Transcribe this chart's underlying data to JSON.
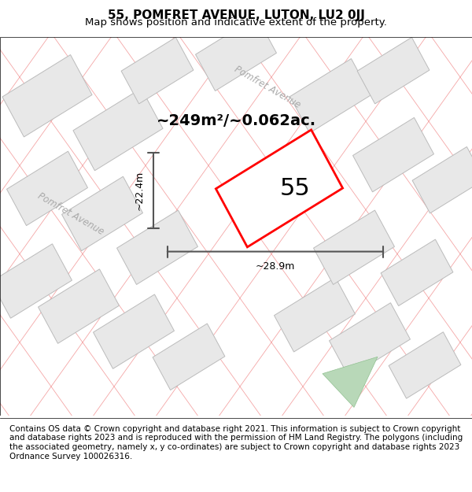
{
  "title_line1": "55, POMFRET AVENUE, LUTON, LU2 0JJ",
  "title_line2": "Map shows position and indicative extent of the property.",
  "footer_text": "Contains OS data © Crown copyright and database right 2021. This information is subject to Crown copyright and database rights 2023 and is reproduced with the permission of HM Land Registry. The polygons (including the associated geometry, namely x, y co-ordinates) are subject to Crown copyright and database rights 2023 Ordnance Survey 100026316.",
  "area_text": "~249m²/~0.062ac.",
  "property_number": "55",
  "dim_height": "~22.4m",
  "dim_width": "~28.9m",
  "street_label_1": "Pomfret Avenue",
  "street_label_2": "Pomfret Avenue",
  "bg_color": "#f5f5f5",
  "map_bg": "#ffffff",
  "block_fill": "#e8e8e8",
  "block_stroke": "#cccccc",
  "red_stroke": "#ff0000",
  "road_line_color": "#f08080",
  "green_fill": "#b8d8b8",
  "dim_line_color": "#555555",
  "title_fontsize": 11,
  "subtitle_fontsize": 9.5,
  "footer_fontsize": 7.5,
  "area_fontsize": 14,
  "number_fontsize": 22,
  "dim_fontsize": 9
}
